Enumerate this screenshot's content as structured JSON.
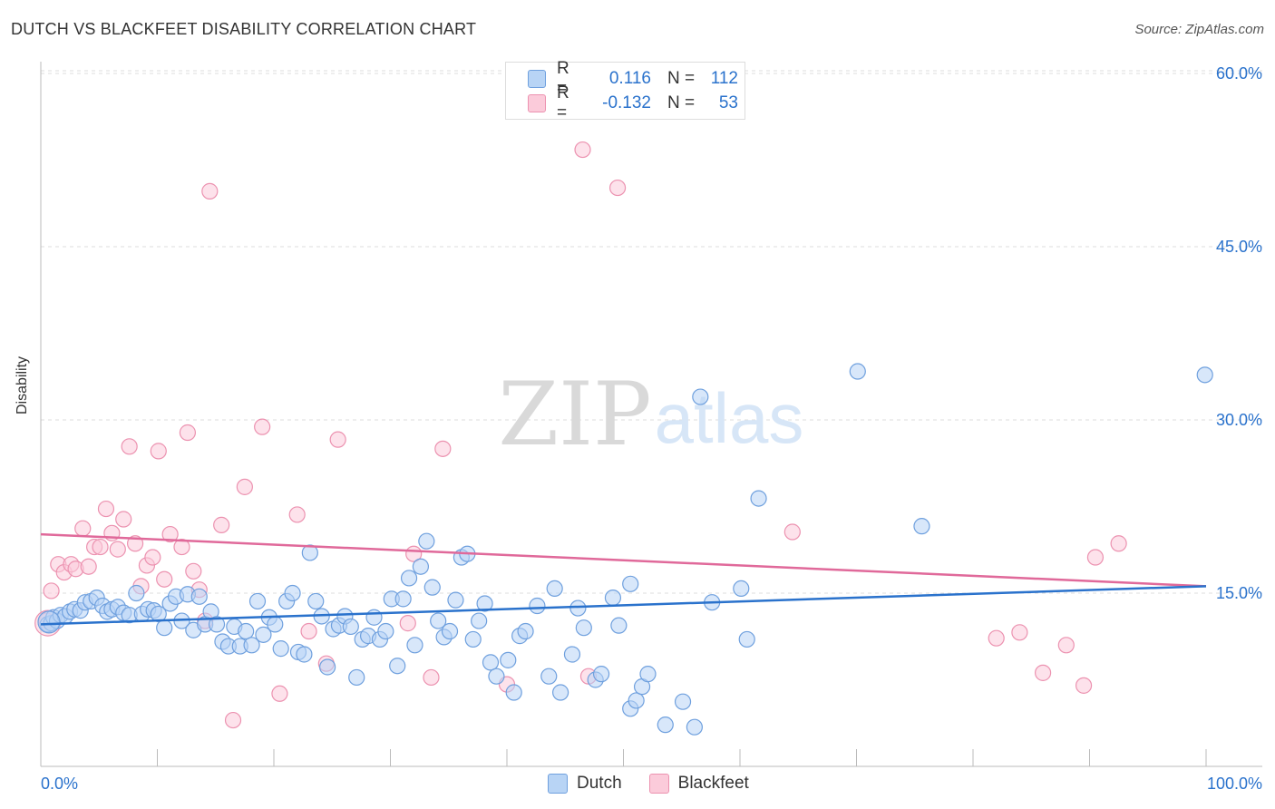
{
  "header": {
    "title": "DUTCH VS BLACKFEET DISABILITY CORRELATION CHART",
    "source": "Source: ZipAtlas.com"
  },
  "watermark": {
    "zip": "ZIP",
    "atlas": "atlas"
  },
  "legend": {
    "rows": [
      {
        "r_label": "R =",
        "r_value": "0.116",
        "n_label": "N =",
        "n_value": "112",
        "color": "#6fa0de"
      },
      {
        "r_label": "R =",
        "r_value": "-0.132",
        "n_label": "N =",
        "n_value": "53",
        "color": "#ec92b0"
      }
    ]
  },
  "bottom_legend": {
    "series1": "Dutch",
    "series2": "Blackfeet"
  },
  "chart_data": {
    "type": "scatter",
    "title": "DUTCH VS BLACKFEET DISABILITY CORRELATION CHART",
    "ylabel": "Disability",
    "xlabel": "",
    "xlim": [
      0,
      100
    ],
    "ylim": [
      0,
      62
    ],
    "x_tick_labels": [
      {
        "value": 0,
        "label": "0.0%"
      },
      {
        "value": 100,
        "label": "100.0%"
      }
    ],
    "y_tick_labels": [
      {
        "value": 15,
        "label": "15.0%"
      },
      {
        "value": 30,
        "label": "30.0%"
      },
      {
        "value": 45,
        "label": "45.0%"
      },
      {
        "value": 60,
        "label": "60.0%"
      }
    ],
    "grid": "horizontal dashed",
    "legend_position": "top-center",
    "colors": {
      "dutch": "#6fa0de",
      "dutch_fill": "#b8d4f5",
      "blackfeet": "#ec92b0",
      "blackfeet_fill": "#fbcbda",
      "dutch_line": "#2a72cc",
      "blackfeet_line": "#e0699a",
      "axis_text": "#2a72cc"
    },
    "series": [
      {
        "name": "Dutch",
        "trend": {
          "x": [
            0,
            100
          ],
          "y": [
            12.3,
            15.6
          ]
        },
        "points": [
          [
            0.6,
            12.3
          ],
          [
            0.9,
            12.4
          ],
          [
            1.1,
            12.9
          ],
          [
            1.4,
            12.6
          ],
          [
            1.7,
            13.1
          ],
          [
            2.1,
            13.0
          ],
          [
            2.5,
            13.4
          ],
          [
            2.9,
            13.6
          ],
          [
            3.4,
            13.5
          ],
          [
            3.8,
            14.2
          ],
          [
            4.3,
            14.3
          ],
          [
            4.8,
            14.6
          ],
          [
            5.3,
            13.9
          ],
          [
            5.7,
            13.4
          ],
          [
            6.1,
            13.6
          ],
          [
            6.6,
            13.8
          ],
          [
            7.1,
            13.3
          ],
          [
            7.6,
            13.1
          ],
          [
            8.2,
            15.0
          ],
          [
            8.7,
            13.2
          ],
          [
            9.2,
            13.6
          ],
          [
            9.7,
            13.5
          ],
          [
            10.1,
            13.2
          ],
          [
            10.6,
            12.0
          ],
          [
            11.1,
            14.1
          ],
          [
            11.6,
            14.7
          ],
          [
            12.1,
            12.6
          ],
          [
            12.6,
            14.9
          ],
          [
            13.1,
            11.8
          ],
          [
            13.6,
            14.7
          ],
          [
            14.1,
            12.3
          ],
          [
            14.6,
            13.4
          ],
          [
            15.1,
            12.3
          ],
          [
            15.6,
            10.8
          ],
          [
            16.1,
            10.4
          ],
          [
            16.6,
            12.1
          ],
          [
            17.1,
            10.4
          ],
          [
            17.6,
            11.7
          ],
          [
            18.1,
            10.5
          ],
          [
            18.6,
            14.3
          ],
          [
            19.1,
            11.4
          ],
          [
            19.6,
            12.9
          ],
          [
            20.1,
            12.3
          ],
          [
            20.6,
            10.2
          ],
          [
            21.1,
            14.3
          ],
          [
            21.6,
            15.0
          ],
          [
            22.1,
            9.9
          ],
          [
            22.6,
            9.7
          ],
          [
            23.1,
            18.5
          ],
          [
            23.6,
            14.3
          ],
          [
            24.1,
            13.0
          ],
          [
            24.6,
            8.6
          ],
          [
            25.1,
            11.9
          ],
          [
            25.6,
            12.2
          ],
          [
            26.1,
            13.0
          ],
          [
            26.6,
            12.1
          ],
          [
            27.1,
            7.7
          ],
          [
            27.6,
            11.0
          ],
          [
            28.1,
            11.3
          ],
          [
            28.6,
            12.9
          ],
          [
            29.1,
            11.0
          ],
          [
            29.6,
            11.7
          ],
          [
            30.1,
            14.5
          ],
          [
            30.6,
            8.7
          ],
          [
            31.1,
            14.5
          ],
          [
            31.6,
            16.3
          ],
          [
            32.1,
            10.5
          ],
          [
            32.6,
            17.3
          ],
          [
            33.1,
            19.5
          ],
          [
            33.6,
            15.5
          ],
          [
            34.1,
            12.6
          ],
          [
            34.6,
            11.2
          ],
          [
            35.1,
            11.7
          ],
          [
            35.6,
            14.4
          ],
          [
            36.1,
            18.1
          ],
          [
            36.6,
            18.4
          ],
          [
            37.1,
            11.0
          ],
          [
            37.6,
            12.6
          ],
          [
            38.1,
            14.1
          ],
          [
            38.6,
            9.0
          ],
          [
            39.1,
            7.8
          ],
          [
            40.1,
            9.2
          ],
          [
            40.6,
            6.4
          ],
          [
            41.1,
            11.3
          ],
          [
            41.6,
            11.7
          ],
          [
            42.6,
            13.9
          ],
          [
            43.6,
            7.8
          ],
          [
            44.1,
            15.4
          ],
          [
            44.6,
            6.4
          ],
          [
            45.6,
            9.7
          ],
          [
            46.1,
            13.7
          ],
          [
            46.6,
            12.0
          ],
          [
            47.6,
            7.5
          ],
          [
            48.1,
            8.0
          ],
          [
            49.1,
            14.6
          ],
          [
            49.6,
            12.2
          ],
          [
            50.6,
            5.0
          ],
          [
            51.1,
            5.7
          ],
          [
            51.6,
            6.9
          ],
          [
            52.1,
            8.0
          ],
          [
            53.6,
            3.6
          ],
          [
            55.1,
            5.6
          ],
          [
            56.1,
            3.4
          ],
          [
            56.6,
            32.0
          ],
          [
            57.6,
            14.2
          ],
          [
            60.1,
            15.4
          ],
          [
            60.6,
            11.0
          ],
          [
            61.6,
            23.2
          ],
          [
            70.1,
            34.2
          ],
          [
            75.6,
            20.8
          ],
          [
            99.9,
            33.9
          ],
          [
            50.6,
            15.8
          ]
        ]
      },
      {
        "name": "Blackfeet",
        "trend": {
          "x": [
            0,
            100
          ],
          "y": [
            20.1,
            15.6
          ]
        },
        "points": [
          [
            0.5,
            12.6
          ],
          [
            0.9,
            15.2
          ],
          [
            1.5,
            17.5
          ],
          [
            2.0,
            16.8
          ],
          [
            2.6,
            17.5
          ],
          [
            3.0,
            17.1
          ],
          [
            3.6,
            20.6
          ],
          [
            4.1,
            17.3
          ],
          [
            4.6,
            19.0
          ],
          [
            5.1,
            19.0
          ],
          [
            5.6,
            22.3
          ],
          [
            6.1,
            20.2
          ],
          [
            6.6,
            18.8
          ],
          [
            7.1,
            21.4
          ],
          [
            7.6,
            27.7
          ],
          [
            8.1,
            19.3
          ],
          [
            8.6,
            15.6
          ],
          [
            9.1,
            17.4
          ],
          [
            9.6,
            18.1
          ],
          [
            10.1,
            27.3
          ],
          [
            10.6,
            16.2
          ],
          [
            11.1,
            20.1
          ],
          [
            12.1,
            19.0
          ],
          [
            12.6,
            28.9
          ],
          [
            13.1,
            16.9
          ],
          [
            13.6,
            15.3
          ],
          [
            14.1,
            12.6
          ],
          [
            14.5,
            49.8
          ],
          [
            15.5,
            20.9
          ],
          [
            16.5,
            4.0
          ],
          [
            17.5,
            24.2
          ],
          [
            19.0,
            29.4
          ],
          [
            20.5,
            6.3
          ],
          [
            22.0,
            21.8
          ],
          [
            23.0,
            11.7
          ],
          [
            24.5,
            8.9
          ],
          [
            25.5,
            28.3
          ],
          [
            31.5,
            12.4
          ],
          [
            32.0,
            18.4
          ],
          [
            33.5,
            7.7
          ],
          [
            34.5,
            27.5
          ],
          [
            40.0,
            7.1
          ],
          [
            46.5,
            53.4
          ],
          [
            47.0,
            7.8
          ],
          [
            49.5,
            50.1
          ],
          [
            64.5,
            20.3
          ],
          [
            82.0,
            11.1
          ],
          [
            84.0,
            11.6
          ],
          [
            86.0,
            8.1
          ],
          [
            88.0,
            10.5
          ],
          [
            89.5,
            7.0
          ],
          [
            90.5,
            18.1
          ],
          [
            92.5,
            19.3
          ]
        ]
      }
    ]
  }
}
